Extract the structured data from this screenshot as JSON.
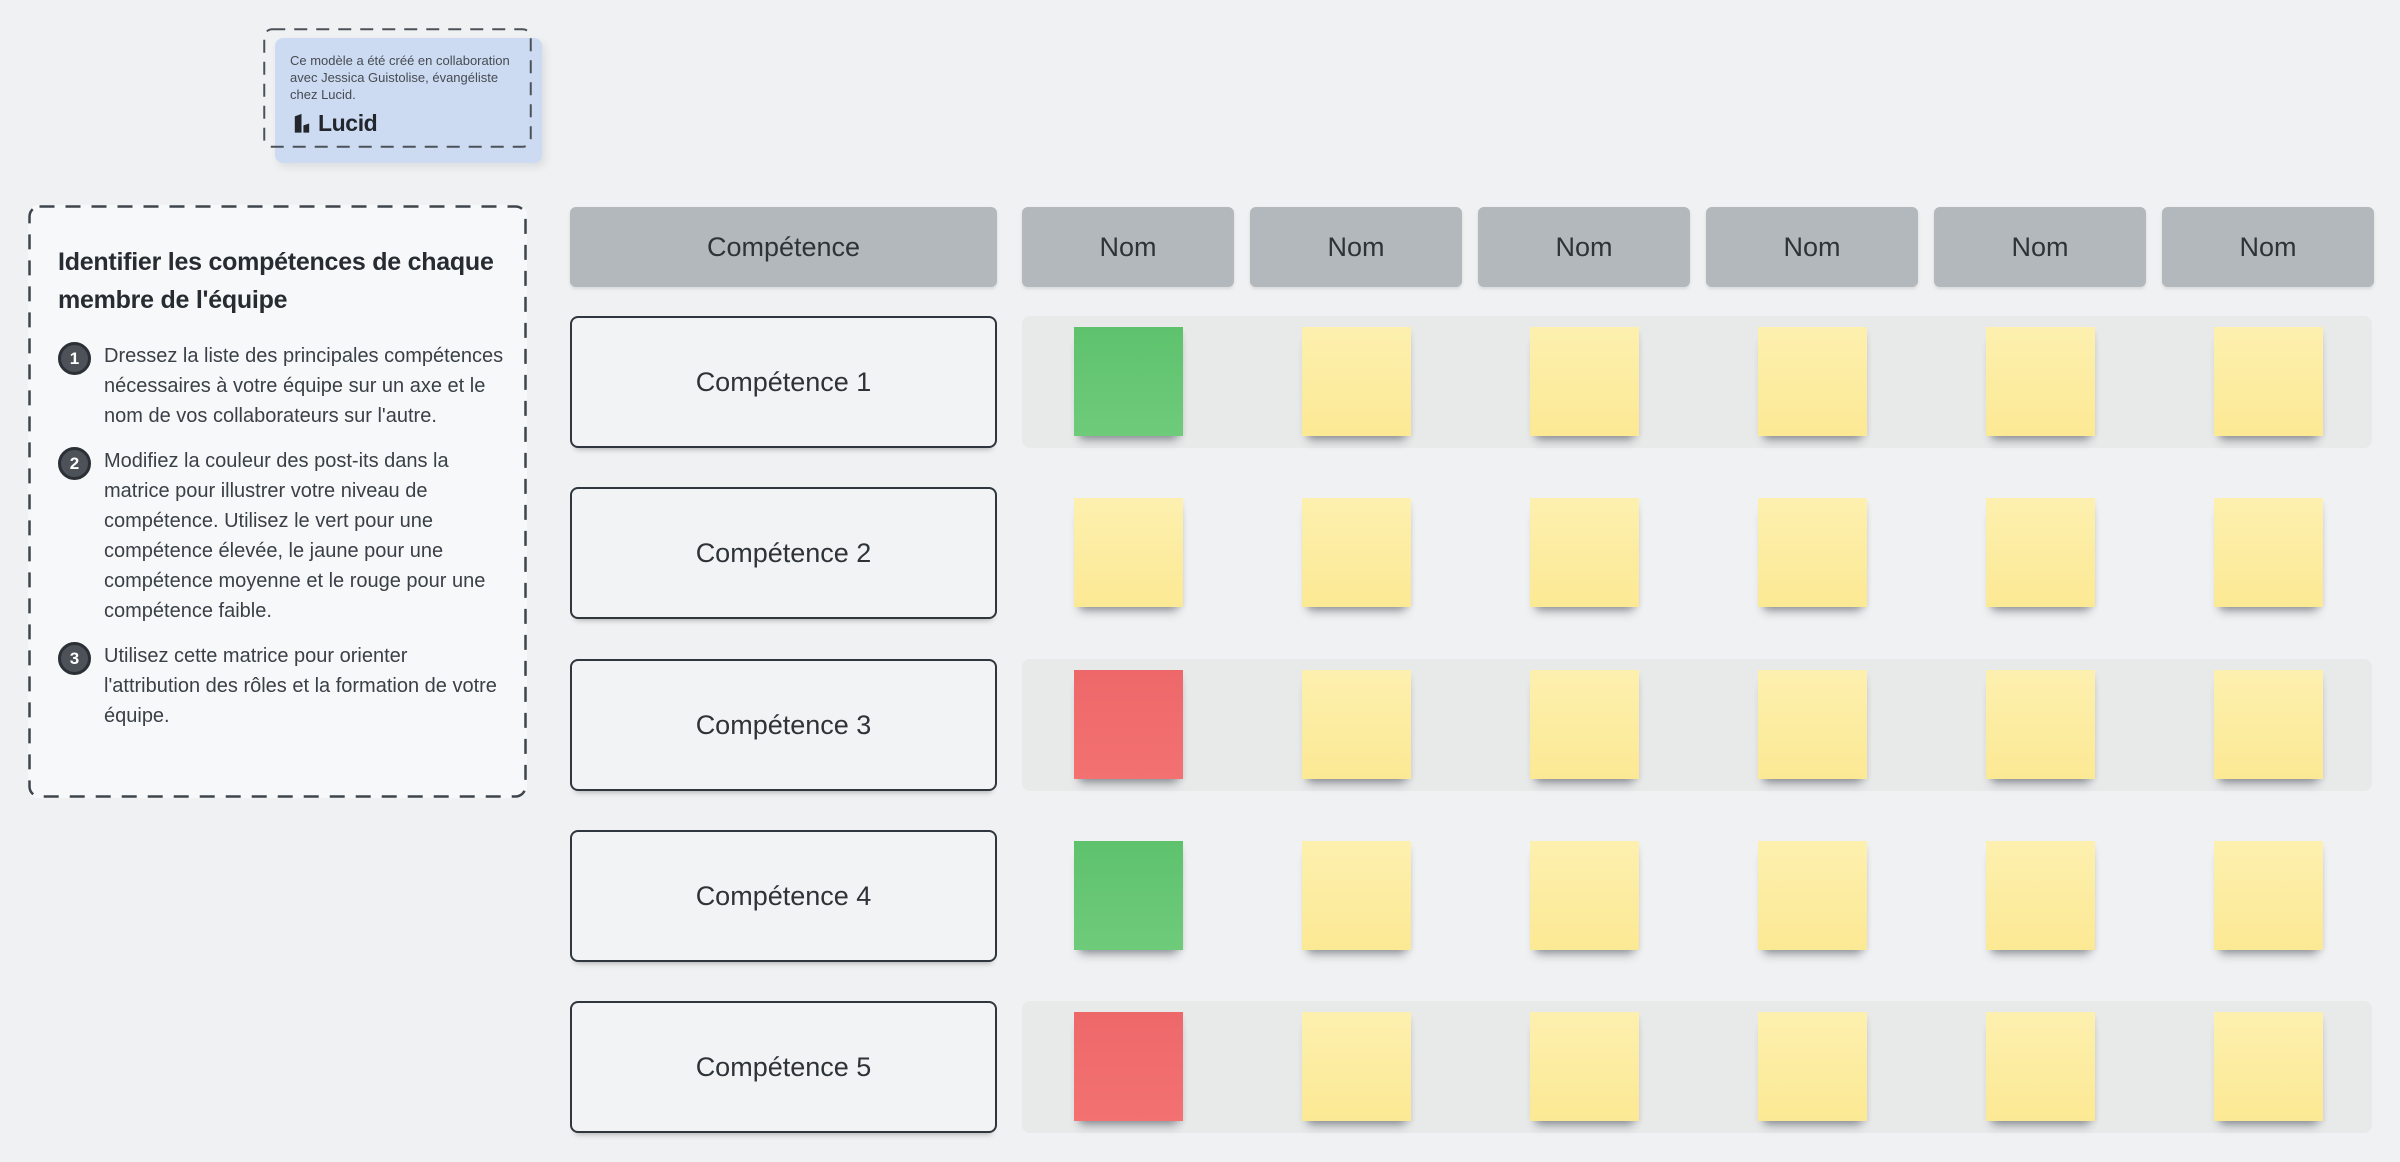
{
  "attribution_note": {
    "text": "Ce modèle a été créé en collaboration avec Jessica Guistolise, évangéliste chez Lucid.",
    "logo_text": "Lucid"
  },
  "instructions": {
    "title": "Identifier les compétences de chaque membre de l'équipe",
    "steps": [
      {
        "number": "1",
        "text": "Dressez la liste des principales compétences nécessaires à votre équipe sur un axe et le nom de vos collaborateurs sur l'autre."
      },
      {
        "number": "2",
        "text": "Modifiez la couleur des post-its dans la matrice pour illustrer votre niveau de compétence. Utilisez le vert pour une compétence élevée, le jaune pour une compétence moyenne et le rouge pour une compétence faible."
      },
      {
        "number": "3",
        "text": "Utilisez cette matrice pour orienter l'attribution des rôles et la formation de votre équipe."
      }
    ]
  },
  "matrix": {
    "skill_header": "Compétence",
    "name_headers": [
      "Nom",
      "Nom",
      "Nom",
      "Nom",
      "Nom",
      "Nom"
    ],
    "rows": [
      {
        "label": "Compétence 1",
        "banded": true,
        "notes": [
          "green",
          "yellow",
          "yellow",
          "yellow",
          "yellow",
          "yellow"
        ]
      },
      {
        "label": "Compétence 2",
        "banded": false,
        "notes": [
          "yellow",
          "yellow",
          "yellow",
          "yellow",
          "yellow",
          "yellow"
        ]
      },
      {
        "label": "Compétence 3",
        "banded": true,
        "notes": [
          "red",
          "yellow",
          "yellow",
          "yellow",
          "yellow",
          "yellow"
        ]
      },
      {
        "label": "Compétence 4",
        "banded": false,
        "notes": [
          "green",
          "yellow",
          "yellow",
          "yellow",
          "yellow",
          "yellow"
        ]
      },
      {
        "label": "Compétence 5",
        "banded": true,
        "notes": [
          "red",
          "yellow",
          "yellow",
          "yellow",
          "yellow",
          "yellow"
        ]
      }
    ],
    "note_colors": {
      "green": "#64c673",
      "yellow": "#fdeca1",
      "red": "#f06a6b"
    }
  },
  "palette": {
    "page_background": "#f0f1f2",
    "header_fill": "#b2b8bb",
    "row_band_fill": "#e8e9e9",
    "note_card_fill": "#cddbf2",
    "dashed_border": "#42484f",
    "text_dark": "#2e3338"
  }
}
